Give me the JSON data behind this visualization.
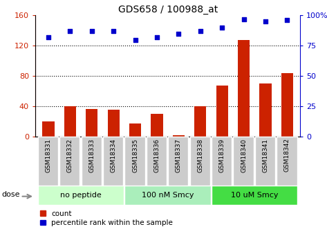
{
  "title": "GDS658 / 100988_at",
  "categories": [
    "GSM18331",
    "GSM18332",
    "GSM18333",
    "GSM18334",
    "GSM18335",
    "GSM18336",
    "GSM18337",
    "GSM18338",
    "GSM18339",
    "GSM18340",
    "GSM18341",
    "GSM18342"
  ],
  "bar_values": [
    20,
    40,
    37,
    36,
    18,
    30,
    2,
    40,
    68,
    128,
    70,
    84
  ],
  "scatter_values": [
    82,
    87,
    87,
    87,
    80,
    82,
    85,
    87,
    90,
    97,
    95,
    96
  ],
  "bar_color": "#cc2200",
  "scatter_color": "#0000cc",
  "ylim_left": [
    0,
    160
  ],
  "ylim_right": [
    0,
    100
  ],
  "yticks_left": [
    0,
    40,
    80,
    120,
    160
  ],
  "yticks_right": [
    0,
    25,
    50,
    75,
    100
  ],
  "ytick_labels_right": [
    "0",
    "25",
    "50",
    "75",
    "100%"
  ],
  "grid_values": [
    40,
    80,
    120
  ],
  "groups": [
    {
      "label": "no peptide",
      "start": 0,
      "end": 4,
      "color": "#ccffcc"
    },
    {
      "label": "100 nM Smcy",
      "start": 4,
      "end": 8,
      "color": "#aaeebb"
    },
    {
      "label": "10 uM Smcy",
      "start": 8,
      "end": 12,
      "color": "#44dd44"
    }
  ],
  "dose_label": "dose",
  "legend_bar_label": "count",
  "legend_scatter_label": "percentile rank within the sample",
  "tick_bg_color": "#cccccc",
  "bg_color": "#ffffff"
}
